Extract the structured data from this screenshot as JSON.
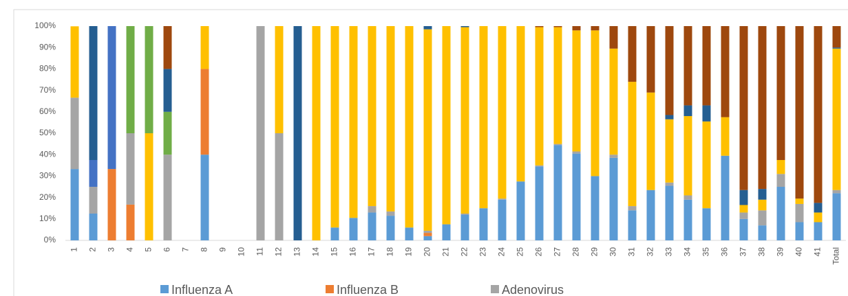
{
  "chart_data": {
    "type": "stacked-bar-100",
    "categories": [
      "1",
      "2",
      "3",
      "4",
      "5",
      "6",
      "7",
      "8",
      "9",
      "10",
      "11",
      "12",
      "13",
      "14",
      "15",
      "16",
      "17",
      "18",
      "19",
      "20",
      "21",
      "22",
      "23",
      "24",
      "25",
      "26",
      "27",
      "28",
      "29",
      "30",
      "31",
      "32",
      "33",
      "34",
      "35",
      "36",
      "37",
      "38",
      "39",
      "40",
      "41",
      "Total"
    ],
    "series": [
      {
        "name": "Influenza A",
        "color": "#5b9bd5",
        "values": [
          33.3,
          12.5,
          0,
          0,
          0,
          0,
          0,
          40,
          0,
          0,
          0,
          0,
          0,
          0,
          6,
          10.5,
          13,
          11.5,
          6,
          2,
          7.5,
          12,
          15,
          19,
          27.5,
          34.5,
          44.5,
          40.5,
          30,
          38.5,
          14,
          23.5,
          25.5,
          19,
          15,
          39.5,
          10,
          7,
          25,
          8.5,
          8.5,
          22
        ]
      },
      {
        "name": "Influenza B",
        "color": "#ed7d31",
        "values": [
          0,
          0,
          33.3,
          16.7,
          0,
          0,
          0,
          40,
          0,
          0,
          0,
          0,
          0,
          0,
          0,
          0,
          0,
          0,
          0,
          1.5,
          0,
          0,
          0,
          0,
          0,
          0,
          0,
          0,
          0,
          0,
          0,
          0,
          0,
          0,
          0,
          0,
          0,
          0,
          0,
          0,
          0,
          0
        ]
      },
      {
        "name": "Adenovirus",
        "color": "#a5a5a5",
        "values": [
          33.3,
          12.5,
          0,
          33.3,
          0,
          40,
          0,
          0,
          0,
          0,
          100,
          50,
          0,
          0,
          0,
          0,
          3,
          2,
          0,
          1,
          0,
          0.5,
          0,
          0.5,
          0,
          0.5,
          0.5,
          1,
          0,
          1.5,
          2,
          0,
          1.5,
          2,
          0,
          0,
          3,
          7,
          6,
          8.5,
          0,
          1.5
        ]
      },
      {
        "color": "#ffc000",
        "values": [
          33.3,
          0,
          0,
          0,
          50,
          0,
          0,
          20,
          0,
          0,
          0,
          50,
          0,
          100,
          94,
          89.5,
          84,
          86.5,
          94,
          94,
          92.5,
          87,
          85,
          80.5,
          72.5,
          64.5,
          54.5,
          56.5,
          68,
          49.5,
          58,
          45.5,
          29.5,
          37,
          40.5,
          18,
          3.5,
          5,
          6.5,
          2.5,
          4.5,
          66
        ]
      },
      {
        "color": "#4472c4",
        "values": [
          0,
          12.5,
          66.7,
          0,
          0,
          0,
          0,
          0,
          0,
          0,
          0,
          0,
          0,
          0,
          0,
          0,
          0,
          0,
          0,
          0,
          0,
          0,
          0,
          0,
          0,
          0,
          0,
          0,
          0,
          0,
          0,
          0,
          0,
          0,
          0,
          0,
          0,
          0,
          0,
          0,
          0,
          0
        ]
      },
      {
        "color": "#70ad47",
        "values": [
          0,
          0,
          0,
          50,
          50,
          20,
          0,
          0,
          0,
          0,
          0,
          0,
          0,
          0,
          0,
          0,
          0,
          0,
          0,
          0,
          0,
          0,
          0,
          0,
          0,
          0,
          0,
          0,
          0,
          0,
          0,
          0,
          0,
          0,
          0,
          0,
          0,
          0,
          0,
          0,
          0,
          0
        ]
      },
      {
        "color": "#255e91",
        "values": [
          0,
          62.5,
          0,
          0,
          0,
          20,
          0,
          0,
          0,
          0,
          0,
          0,
          100,
          0,
          0,
          0,
          0,
          0,
          0,
          1.5,
          0,
          0.5,
          0,
          0,
          0,
          0,
          0,
          0,
          0,
          0,
          0,
          0,
          2,
          5,
          7.5,
          0,
          7,
          5,
          0,
          0,
          4.5,
          0.5
        ]
      },
      {
        "color": "#9e480e",
        "values": [
          0,
          0,
          0,
          0,
          0,
          20,
          0,
          0,
          0,
          0,
          0,
          0,
          0,
          0,
          0,
          0,
          0,
          0,
          0,
          0,
          0,
          0,
          0,
          0,
          0,
          0.5,
          0.5,
          2,
          2,
          10.5,
          26,
          31,
          41.5,
          37,
          37,
          42.5,
          76.5,
          76,
          62.5,
          80.5,
          82.5,
          10
        ]
      }
    ],
    "ylim": [
      0,
      100
    ],
    "yticks": [
      {
        "value": 0,
        "label": "0%"
      },
      {
        "value": 10,
        "label": "10%"
      },
      {
        "value": 20,
        "label": "20%"
      },
      {
        "value": 30,
        "label": "30%"
      },
      {
        "value": 40,
        "label": "40%"
      },
      {
        "value": 50,
        "label": "50%"
      },
      {
        "value": 60,
        "label": "60%"
      },
      {
        "value": 70,
        "label": "70%"
      },
      {
        "value": 80,
        "label": "80%"
      },
      {
        "value": 90,
        "label": "90%"
      },
      {
        "value": 100,
        "label": "100%"
      }
    ],
    "grid": false
  }
}
